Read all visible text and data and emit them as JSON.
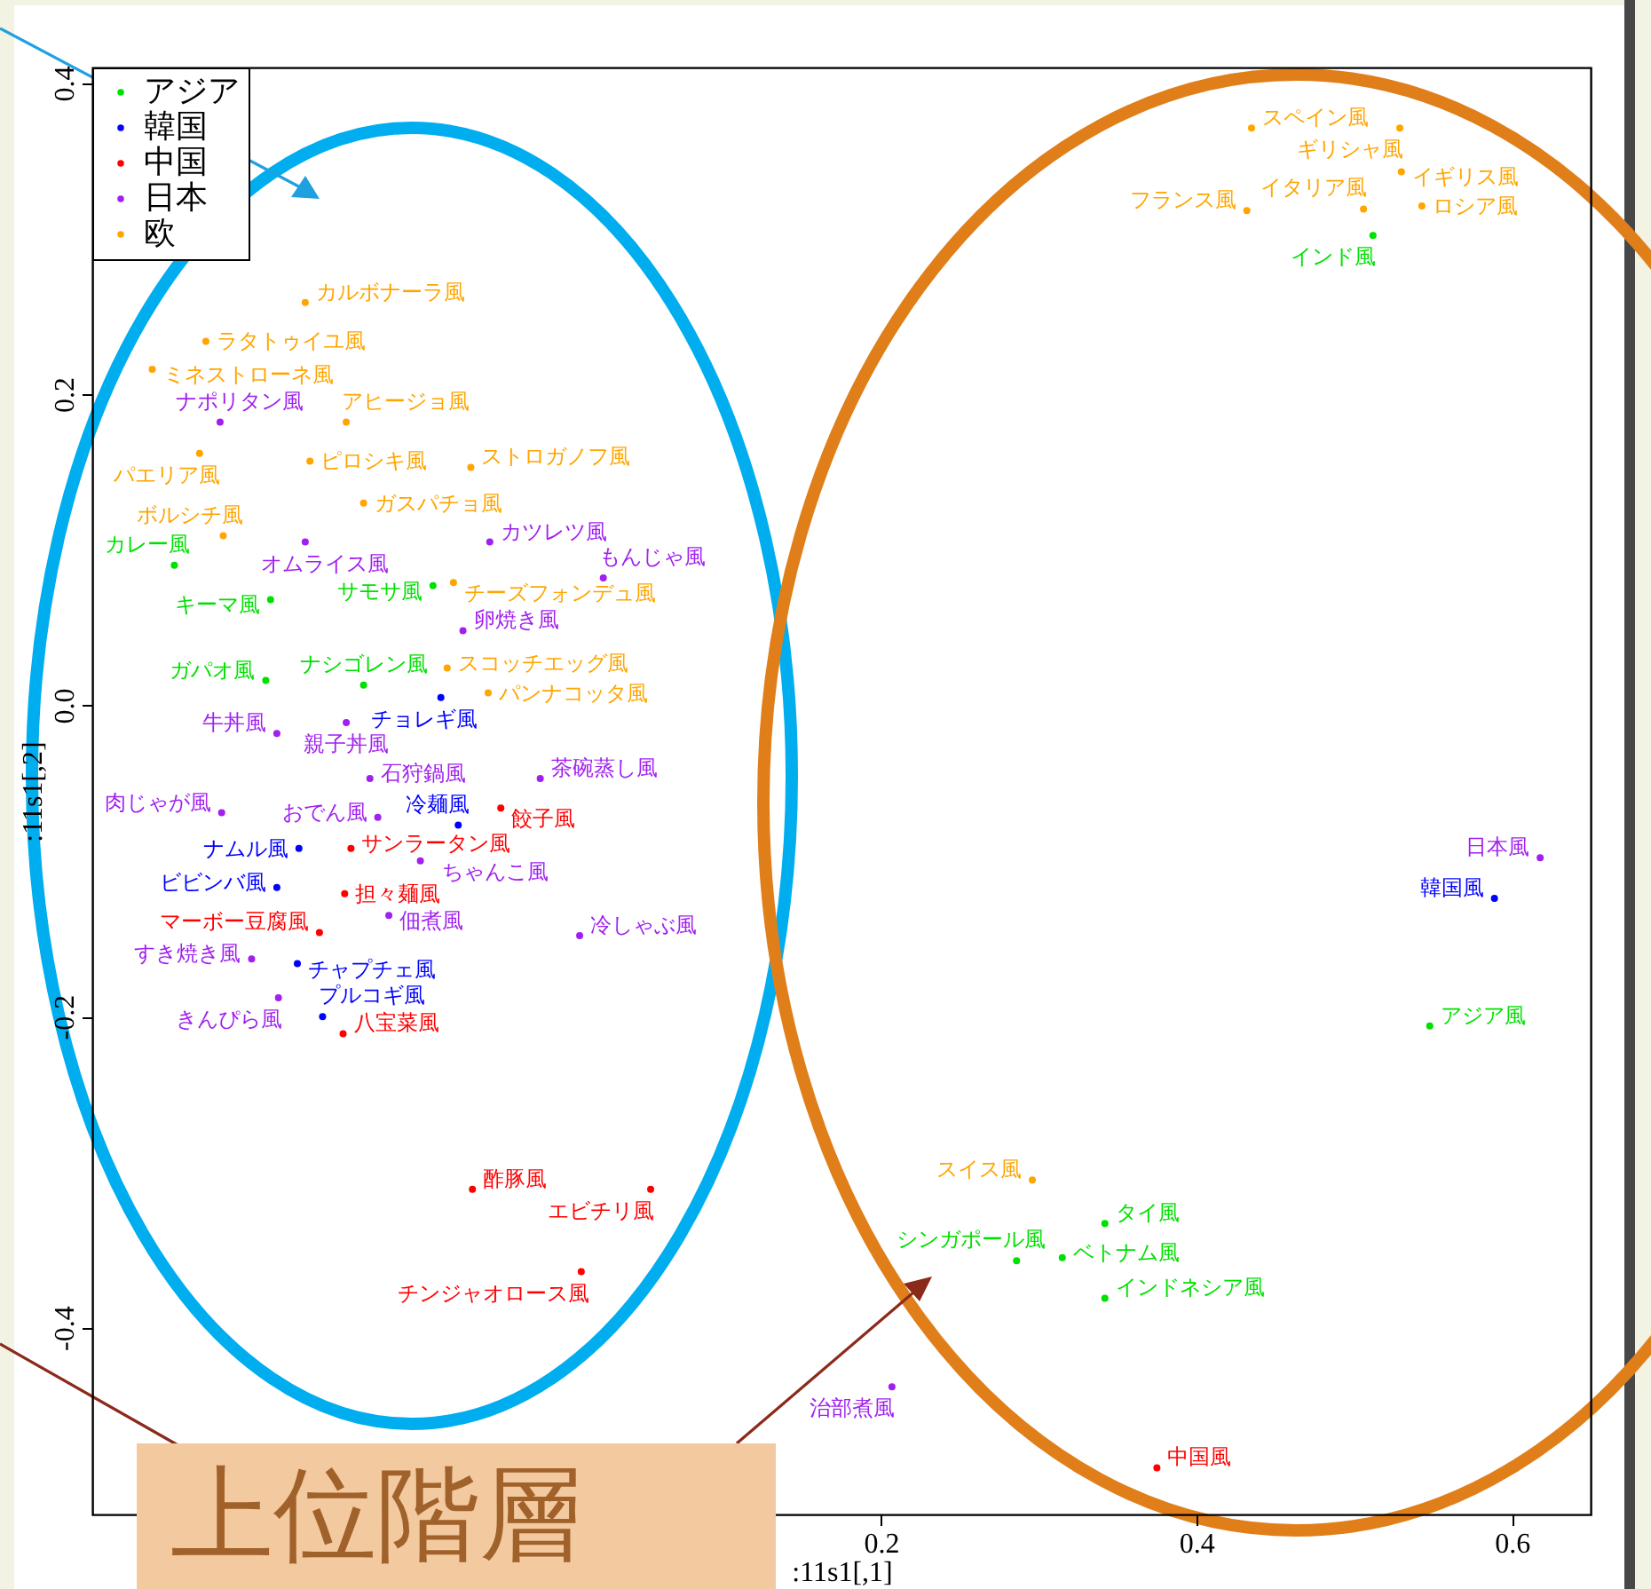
{
  "chart_data": {
    "type": "scatter",
    "xlabel": ":11s1[,1]",
    "ylabel": ":11s1[,2]",
    "annotations": [
      "上位階層"
    ],
    "xlim": [
      -0.3,
      0.65
    ],
    "ylim": [
      -0.52,
      0.41
    ],
    "xticks": [
      0.2,
      0.4,
      0.6
    ],
    "yticks": [
      {
        "value": -0.4,
        "label": "-0.4"
      },
      {
        "value": -0.2,
        "label": "-0.2"
      },
      {
        "value": 0,
        "label": "0.0"
      },
      0.2,
      0.4
    ],
    "grid": false,
    "legend": "top left",
    "marker": "circle",
    "series": [
      {
        "name": "アジア",
        "color": "#00e000",
        "x": [
          0.512,
          -0.248,
          -0.084,
          -0.187,
          -0.19,
          -0.128,
          0.548,
          0.342,
          0.286,
          0.315,
          0.342
        ],
        "values": [
          0.302,
          0.09,
          0.077,
          0.068,
          0.016,
          0.013,
          -0.206,
          -0.333,
          -0.357,
          -0.355,
          -0.381
        ],
        "value_labels": [
          "インド風",
          "カレー風",
          "サモサ風",
          "キーマ風",
          "ガパオ風",
          "ナシゴレン風",
          "アジア風",
          "タイ風",
          "シンガポール風",
          "ベトナム風",
          "インドネシア風"
        ]
      },
      {
        "name": "韓国",
        "color": "#0000ff",
        "x": [
          0.589,
          -0.079,
          -0.068,
          -0.169,
          -0.183,
          -0.17,
          -0.154
        ],
        "values": [
          -0.124,
          0.005,
          -0.077,
          -0.092,
          -0.117,
          -0.166,
          -0.2
        ],
        "value_labels": [
          "韓国風",
          "チョレギ風",
          "冷麺風",
          "ナムル風",
          "ビビンバ風",
          "チャプチェ風",
          "プルコギ風"
        ]
      },
      {
        "name": "中国",
        "color": "#ff0000",
        "x": [
          -0.059,
          0.054,
          0.01,
          0.375,
          -0.041,
          -0.136,
          -0.14,
          -0.156,
          -0.141
        ],
        "values": [
          -0.311,
          -0.311,
          -0.364,
          -0.49,
          -0.066,
          -0.092,
          -0.121,
          -0.146,
          -0.211
        ],
        "value_labels": [
          "酢豚風",
          "エビチリ風",
          "チンジャオロース風",
          "中国風",
          "餃子風",
          "サンラータン風",
          "担々麺風",
          "マーボー豆腐風",
          "八宝菜風"
        ]
      },
      {
        "name": "日本",
        "color": "#a020f0",
        "x": [
          0.618,
          -0.219,
          -0.165,
          -0.048,
          0.024,
          -0.065,
          -0.183,
          -0.139,
          -0.124,
          -0.016,
          -0.218,
          -0.119,
          -0.092,
          -0.112,
          0.009,
          -0.199,
          -0.182,
          0.207
        ],
        "values": [
          -0.098,
          0.182,
          0.105,
          0.105,
          0.082,
          0.048,
          -0.018,
          -0.011,
          -0.047,
          -0.047,
          -0.069,
          -0.072,
          -0.1,
          -0.135,
          -0.148,
          -0.163,
          -0.188,
          -0.438
        ],
        "value_labels": [
          "日本風",
          "ナポリタン風",
          "オムライス風",
          "カツレツ風",
          "もんじゃ風",
          "卵焼き風",
          "牛丼風",
          "親子丼風",
          "石狩鍋風",
          "茶碗蒸し風",
          "肉じゃが風",
          "おでん風",
          "ちゃんこ風",
          "佃煮風",
          "冷しゃぶ風",
          "すき焼き風",
          "きんぴら風",
          "治部煮風"
        ]
      },
      {
        "name": "欧",
        "color": "#ffa500",
        "x": [
          0.435,
          0.529,
          0.53,
          0.432,
          0.506,
          0.543,
          -0.165,
          -0.228,
          -0.262,
          -0.139,
          -0.232,
          -0.162,
          -0.06,
          -0.128,
          -0.217,
          -0.071,
          -0.075,
          -0.049,
          0.296
        ],
        "values": [
          0.371,
          0.371,
          0.343,
          0.318,
          0.319,
          0.321,
          0.259,
          0.234,
          0.216,
          0.182,
          0.162,
          0.157,
          0.153,
          0.13,
          0.109,
          0.079,
          0.024,
          0.008,
          -0.305
        ],
        "value_labels": [
          "スペイン風",
          "ギリシャ風",
          "イギリス風",
          "フランス風",
          "イタリア風",
          "ロシア風",
          "カルボナーラ風",
          "ラタトゥイユ風",
          "ミネストローネ風",
          "アヒージョ風",
          "パエリア風",
          "ピロシキ風",
          "ストロガノフ風",
          "ガスパチョ風",
          "ボルシチ風",
          "チーズフォンデュ風",
          "スコッチエッグ風",
          "パンナコッタ風",
          "スイス風"
        ]
      }
    ]
  }
}
